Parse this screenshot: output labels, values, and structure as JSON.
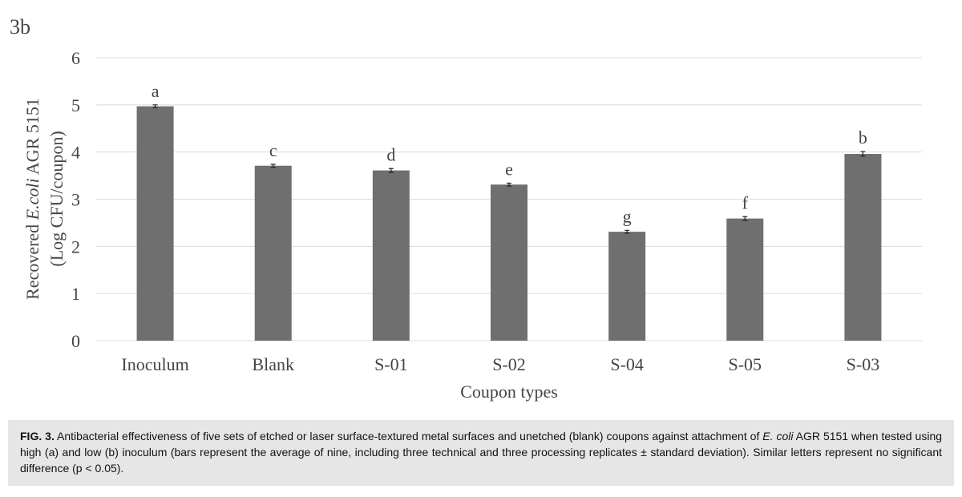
{
  "chart_data": {
    "type": "bar",
    "panel_label": "3b",
    "ylabel": {
      "before": "Recovered ",
      "italic": "E.coli",
      "after": " AGR 5151",
      "line2": "(Log CFU/coupon)"
    },
    "xlabel": "Coupon types",
    "categories": [
      "Inoculum",
      "Blank",
      "S-01",
      "S-02",
      "S-04",
      "S-05",
      "S-03"
    ],
    "values": [
      4.97,
      3.71,
      3.61,
      3.31,
      2.31,
      2.59,
      3.96
    ],
    "errors": [
      0.03,
      0.03,
      0.04,
      0.03,
      0.03,
      0.04,
      0.05
    ],
    "annotations": [
      "a",
      "c",
      "d",
      "e",
      "g",
      "f",
      "b"
    ],
    "color": "#6f6f6f",
    "ylim": [
      0,
      6
    ],
    "yticks": [
      0,
      1,
      2,
      3,
      4,
      5,
      6
    ],
    "grid": true
  },
  "caption": {
    "label": "FIG. 3.",
    "text_1": "Antibacterial effectiveness of five sets of etched or laser surface-textured metal surfaces and unetched (blank) coupons against attachment of ",
    "italic": "E. coli",
    "text_2": " AGR 5151 when tested using high (a) and low (b) inoculum (bars represent the average of nine, including three technical and three processing replicates ± standard deviation). Similar letters represent no significant difference (p < 0.05)."
  }
}
